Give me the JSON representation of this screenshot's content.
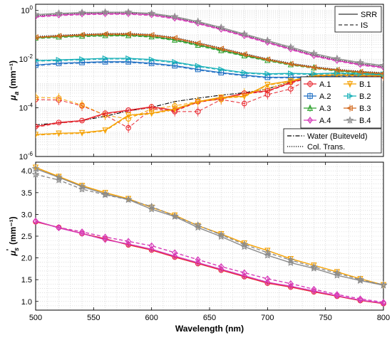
{
  "chart_data": [
    {
      "id": "absorption",
      "type": "line",
      "ylabel_main": "μ",
      "ylabel_sub": "a",
      "ylabel_unit": "(mm⁻¹)",
      "yscale": "log",
      "xlim": [
        500,
        800
      ],
      "ylim": [
        1e-06,
        1.8
      ],
      "grid": true,
      "x_ticks": [
        "500",
        "550",
        "600",
        "650",
        "700",
        "750",
        "800"
      ],
      "y_ticks": [
        {
          "value": 1,
          "base": "10",
          "exp": "0"
        },
        {
          "value": 0.01,
          "base": "10",
          "exp": "-2"
        },
        {
          "value": 0.0001,
          "base": "10",
          "exp": "-4"
        },
        {
          "value": 1e-06,
          "base": "10",
          "exp": "-6"
        }
      ],
      "x": [
        500,
        520,
        540,
        560,
        580,
        600,
        620,
        640,
        660,
        680,
        700,
        720,
        740,
        760,
        780,
        800
      ],
      "series": [
        {
          "name": "A.1",
          "color": "#e8252d",
          "marker": "circle",
          "values": [
            1.7e-05,
            2.5e-05,
            3e-05,
            6e-05,
            8e-05,
            0.00011,
            8e-05,
            0.00018,
            0.00025,
            0.0004,
            0.0005,
            0.0011,
            0.0021,
            0.0023,
            0.0021,
            0.0021
          ]
        },
        {
          "name": "A.2",
          "color": "#1f6fc4",
          "marker": "square",
          "values": [
            0.0057,
            0.0068,
            0.0073,
            0.0078,
            0.0078,
            0.0068,
            0.0054,
            0.0038,
            0.0028,
            0.0022,
            0.0018,
            0.0018,
            0.0019,
            0.0021,
            0.0022,
            0.0023
          ]
        },
        {
          "name": "A.3",
          "color": "#2ca02c",
          "marker": "triangle-up",
          "values": [
            0.075,
            0.083,
            0.09,
            0.095,
            0.096,
            0.085,
            0.062,
            0.038,
            0.023,
            0.014,
            0.009,
            0.006,
            0.0045,
            0.0034,
            0.0028,
            0.0025
          ]
        },
        {
          "name": "A.4",
          "color": "#d63ab8",
          "marker": "diamond",
          "values": [
            0.57,
            0.65,
            0.72,
            0.74,
            0.74,
            0.66,
            0.48,
            0.3,
            0.17,
            0.092,
            0.049,
            0.026,
            0.014,
            0.0088,
            0.006,
            0.0046
          ]
        },
        {
          "name": "B.1",
          "color": "#f5a000",
          "marker": "triangle-down",
          "values": [
            8e-06,
            9e-06,
            9.5e-06,
            1.2e-05,
            5e-05,
            6e-05,
            9e-05,
            0.00018,
            0.00027,
            0.0003,
            0.0009,
            0.0013,
            0.0021,
            0.0023,
            0.0022,
            0.0021
          ]
        },
        {
          "name": "B.2",
          "color": "#17b0b8",
          "marker": "triangle-right",
          "values": [
            0.0088,
            0.0093,
            0.01,
            0.0108,
            0.0108,
            0.0097,
            0.0076,
            0.0053,
            0.0038,
            0.0028,
            0.0025,
            0.0026,
            0.0025,
            0.0027,
            0.0025,
            0.0024
          ]
        },
        {
          "name": "B.3",
          "color": "#d2691e",
          "marker": "triangle-left",
          "values": [
            0.08,
            0.09,
            0.1,
            0.107,
            0.108,
            0.098,
            0.074,
            0.045,
            0.027,
            0.016,
            0.0098,
            0.0064,
            0.0046,
            0.0036,
            0.003,
            0.0026
          ]
        },
        {
          "name": "B.4",
          "color": "#8c8c8c",
          "marker": "star",
          "values": [
            0.68,
            0.76,
            0.82,
            0.85,
            0.85,
            0.76,
            0.56,
            0.35,
            0.2,
            0.108,
            0.058,
            0.031,
            0.017,
            0.0105,
            0.0072,
            0.0055
          ]
        }
      ],
      "is_series": [
        {
          "color": "#e8252d",
          "values": [
            0.00022,
            0.00021,
            0.00012,
            5e-05,
            1.5e-05,
            9e-05,
            7e-05,
            7e-05,
            0.00022,
            0.00015,
            0.00035,
            0.0006,
            0.002,
            0.0022,
            0.002,
            0.002
          ]
        },
        {
          "color": "#f5a000",
          "values": [
            0.00027,
            0.00025,
            0.00013,
            5e-05,
            3.5e-05,
            9e-05,
            0.00012,
            0.00018,
            0.00022,
            0.0004,
            0.0006,
            0.0012,
            0.0021,
            0.0022,
            0.0022,
            0.0021
          ]
        }
      ],
      "reference_curves": [
        {
          "name": "Water (Buiteveld)",
          "style": "dash-dot",
          "values": [
            2e-05,
            2.4e-05,
            3e-05,
            4.5e-05,
            7.5e-05,
            0.000105,
            0.00018,
            0.00025,
            0.00033,
            0.00042,
            0.0006,
            0.0012,
            0.0025,
            0.0027,
            0.0022,
            0.0022
          ]
        },
        {
          "name": "Col. Trans.",
          "style": "dotted"
        }
      ],
      "method_legend": [
        {
          "name": "SRR",
          "style": "solid"
        },
        {
          "name": "IS",
          "style": "dashed"
        }
      ]
    },
    {
      "id": "scattering",
      "type": "line",
      "ylabel_main": "μ",
      "ylabel_sub": "s",
      "ylabel_prime": "'",
      "ylabel_unit": "(mm⁻¹)",
      "xlabel": "Wavelength (nm)",
      "xlim": [
        500,
        800
      ],
      "ylim": [
        0.8,
        4.2
      ],
      "grid": true,
      "x_ticks": [
        "500",
        "550",
        "600",
        "650",
        "700",
        "750",
        "800"
      ],
      "y_ticks": [
        "1.0",
        "1.5",
        "2.0",
        "2.5",
        "3.0",
        "3.5",
        "4.0"
      ],
      "x": [
        500,
        520,
        540,
        560,
        580,
        600,
        620,
        640,
        660,
        680,
        700,
        720,
        740,
        760,
        780,
        800
      ],
      "series": [
        {
          "color": "#f5a000",
          "style": "solid",
          "values": [
            4.08,
            3.87,
            3.66,
            3.5,
            3.36,
            3.16,
            2.98,
            2.74,
            2.55,
            2.34,
            2.17,
            1.98,
            1.83,
            1.68,
            1.52,
            1.38
          ]
        },
        {
          "color": "#8c8c8c",
          "style": "solid",
          "values": [
            4.05,
            3.85,
            3.64,
            3.47,
            3.34,
            3.12,
            2.95,
            2.7,
            2.49,
            2.26,
            2.06,
            1.89,
            1.76,
            1.6,
            1.48,
            1.37
          ]
        },
        {
          "color": "#8c8c8c",
          "style": "dashed",
          "values": [
            3.92,
            3.79,
            3.58,
            3.45,
            3.34,
            3.18,
            2.96,
            2.75,
            2.53,
            2.31,
            2.12,
            1.95,
            1.79,
            1.65,
            1.5,
            1.38
          ]
        },
        {
          "color": "#e8252d",
          "style": "solid",
          "values": [
            2.83,
            2.7,
            2.56,
            2.44,
            2.3,
            2.18,
            2.02,
            1.87,
            1.72,
            1.57,
            1.42,
            1.33,
            1.22,
            1.12,
            1.02,
            0.95
          ]
        },
        {
          "color": "#d63ab8",
          "style": "solid",
          "values": [
            2.85,
            2.69,
            2.56,
            2.42,
            2.32,
            2.2,
            2.04,
            1.89,
            1.74,
            1.59,
            1.44,
            1.35,
            1.24,
            1.13,
            1.03,
            0.96
          ]
        },
        {
          "color": "#d63ab8",
          "style": "dashed",
          "values": [
            2.84,
            2.7,
            2.6,
            2.48,
            2.38,
            2.28,
            2.12,
            1.96,
            1.8,
            1.66,
            1.52,
            1.41,
            1.28,
            1.16,
            1.06,
            0.98
          ]
        }
      ]
    }
  ]
}
